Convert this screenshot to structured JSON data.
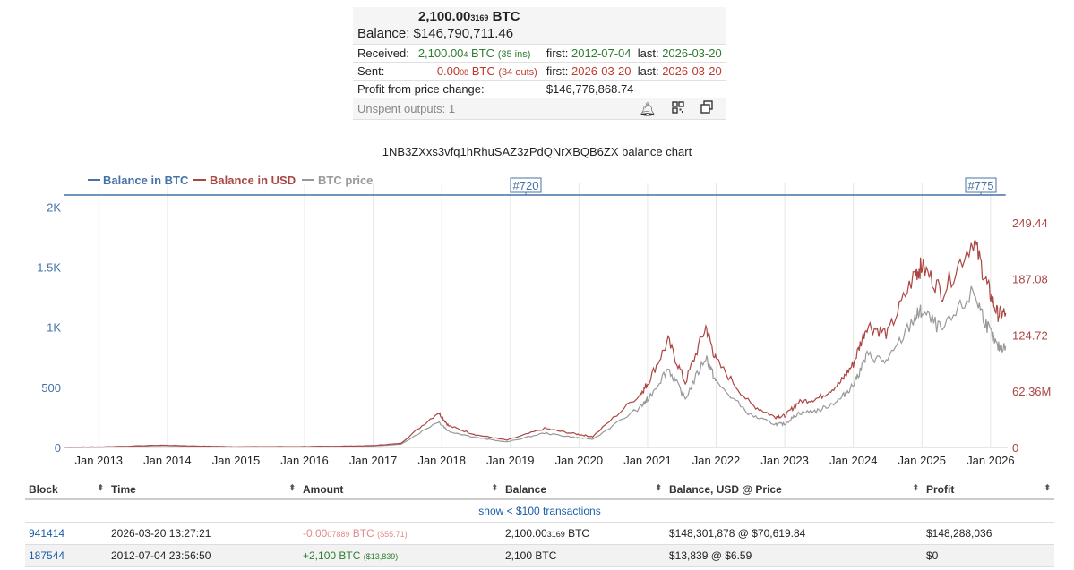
{
  "summary": {
    "btc_main": "2,100.00",
    "btc_small": "3169",
    "btc_unit": " BTC",
    "balance_label": "Balance:",
    "balance_value": "$146,790,711.46",
    "received_label": "Received:",
    "received_main": "2,100.00",
    "received_small": "4",
    "received_unit": " BTC",
    "received_ins": "(35 ins)",
    "received_first_label": "first:",
    "received_first": "2012-07-04",
    "received_last_label": "last:",
    "received_last": "2026-03-20",
    "sent_label": "Sent:",
    "sent_main": "0.00",
    "sent_small": "08",
    "sent_unit": " BTC",
    "sent_outs": "(34 outs)",
    "sent_first_label": "first:",
    "sent_first": "2026-03-20",
    "sent_last_label": "last:",
    "sent_last": "2026-03-20",
    "profit_label": "Profit from price change:",
    "profit_value": "$146,776,868.74",
    "unspent": "Unspent outputs: 1"
  },
  "chart_title": "1NB3ZXxs3vfq1hRhuSAZ3zPdQNrXBQB6ZX balance chart",
  "legend": {
    "btc": "Balance in BTC",
    "usd": "Balance in USD",
    "price": "BTC price"
  },
  "colors": {
    "btc": "#4572a7",
    "usd": "#aa4643",
    "price": "#999999"
  },
  "icons": [
    "bell-icon",
    "qr-code-icon",
    "copy-icon"
  ],
  "chart_data": {
    "type": "line",
    "x_ticks": [
      "Jan 2013",
      "Jan 2014",
      "Jan 2015",
      "Jan 2016",
      "Jan 2017",
      "Jan 2018",
      "Jan 2019",
      "Jan 2020",
      "Jan 2021",
      "Jan 2022",
      "Jan 2023",
      "Jan 2024",
      "Jan 2025",
      "Jan 2026"
    ],
    "y_left_ticks": [
      "0",
      "500",
      "1K",
      "1.5K",
      "2K"
    ],
    "y_right_ticks": [
      "0",
      "62.36M",
      "124.72",
      "187.08",
      "249.44"
    ],
    "ylim_left": [
      0,
      2100
    ],
    "ylim_right": [
      0,
      280
    ],
    "flags": [
      "#720",
      "#775"
    ],
    "series": [
      {
        "name": "Balance in BTC",
        "x": [
          2012.5,
          2026.22
        ],
        "values": [
          2100,
          2100
        ]
      },
      {
        "name": "Balance in USD",
        "x": [
          2012.5,
          2013.0,
          2013.9,
          2014.5,
          2015.0,
          2016.0,
          2016.5,
          2017.0,
          2017.4,
          2017.95,
          2018.1,
          2018.5,
          2018.95,
          2019.5,
          2019.95,
          2020.2,
          2020.9,
          2021.0,
          2021.3,
          2021.55,
          2021.85,
          2022.0,
          2022.5,
          2022.85,
          2023.0,
          2023.2,
          2023.5,
          2023.8,
          2024.0,
          2024.2,
          2024.5,
          2024.9,
          2025.0,
          2025.3,
          2025.75,
          2025.95,
          2026.1,
          2026.22
        ],
        "values": [
          0.3,
          0.5,
          2.5,
          1.5,
          0.8,
          1.0,
          1.4,
          2.1,
          4.5,
          39,
          24,
          14,
          8,
          21,
          15,
          12,
          60,
          71,
          118,
          72,
          134,
          96,
          48,
          34,
          35,
          50,
          55,
          71,
          93,
          136,
          126,
          193,
          201,
          172,
          231,
          180,
          148,
          149
        ]
      },
      {
        "name": "BTC price",
        "x": [
          2012.5,
          2013.0,
          2013.9,
          2014.5,
          2015.0,
          2016.0,
          2016.5,
          2017.0,
          2017.4,
          2017.95,
          2018.1,
          2018.5,
          2018.95,
          2019.5,
          2019.95,
          2020.2,
          2020.9,
          2021.0,
          2021.3,
          2021.55,
          2021.85,
          2022.0,
          2022.5,
          2022.85,
          2023.0,
          2023.2,
          2023.5,
          2023.8,
          2024.0,
          2024.2,
          2024.5,
          2024.9,
          2025.0,
          2025.3,
          2025.75,
          2025.95,
          2026.1,
          2026.22
        ],
        "values": [
          0.2,
          0.4,
          2,
          1.2,
          0.6,
          0.8,
          1.1,
          1.6,
          3.4,
          29,
          18,
          11,
          6,
          16,
          11,
          9,
          45,
          53,
          88,
          54,
          101,
          72,
          36,
          26,
          26,
          38,
          41,
          53,
          70,
          102,
          95,
          145,
          151,
          129,
          173,
          135,
          111,
          112
        ]
      }
    ]
  },
  "table": {
    "headers": [
      "Block",
      "Time",
      "Amount",
      "Balance",
      "Balance, USD @ Price",
      "Profit"
    ],
    "show_link": "show < $100 transactions",
    "rows": [
      {
        "block": "941414",
        "time": "2026-03-20 13:27:21",
        "amount_main": "-0.00",
        "amount_small": "07889",
        "amount_unit": " BTC",
        "amount_usd": "($55.71)",
        "balance_main": "2,100.00",
        "balance_small": "3169",
        "balance_unit": " BTC",
        "balance_usd": "$148,301,878 @ $70,619.84",
        "profit": "$148,288,036"
      },
      {
        "block": "187544",
        "time": "2012-07-04 23:56:50",
        "amount_main": "+2,100",
        "amount_small": "",
        "amount_unit": " BTC",
        "amount_usd": "($13,839)",
        "balance_main": "2,100",
        "balance_small": "",
        "balance_unit": " BTC",
        "balance_usd": "$13,839 @ $6.59",
        "profit": "$0"
      }
    ]
  }
}
